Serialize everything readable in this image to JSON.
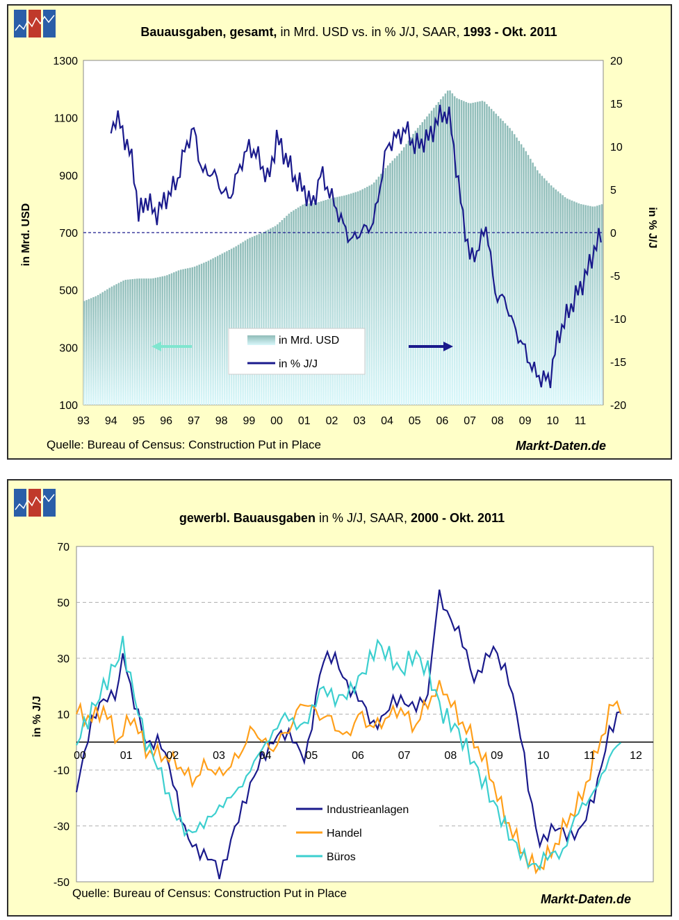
{
  "colors": {
    "panel_bg": "#ffffc8",
    "plot_bg": "#ffffff",
    "bar_fill_top": "#8fbcb8",
    "bar_fill_bottom": "#d8f7fa",
    "yoy_line": "#1a1a8c",
    "industrie": "#1a1a8c",
    "handel": "#ff9f1a",
    "bueros": "#3ccfcf",
    "arrow_left": "#7fe6cf",
    "arrow_right": "#1a1a8c",
    "logo_blue": "#2a5ea8",
    "logo_red": "#c0392b"
  },
  "logo": {
    "icon": "chart-logo-icon"
  },
  "chart1": {
    "title_bold1": "Bauausgaben, gesamt,",
    "title_normal": " in Mrd. USD vs. in % J/J, SAAR, ",
    "title_bold2": "1993 - Okt. 2011",
    "ylabel_left": "in Mrd. USD",
    "ylabel_right": "in % J/J",
    "source": "Quelle: Bureau of Census: Construction Put in Place",
    "brand": "Markt-Daten.de",
    "legend": {
      "bars": "in Mrd. USD",
      "line": "in % J/J"
    }
  },
  "chart2": {
    "title_bold1": "gewerbl. Bauausgaben",
    "title_normal": " in % J/J, SAAR, ",
    "title_bold2": "2000 - Okt. 2011",
    "ylabel": "in % J/J",
    "source": "Quelle: Bureau of Census: Construction Put in Place",
    "brand": "Markt-Daten.de",
    "legend": [
      "Industrieanlagen",
      "Handel",
      "Büros"
    ]
  },
  "chart_data": [
    {
      "type": "bar+line",
      "x_tick_labels": [
        "93",
        "94",
        "95",
        "96",
        "97",
        "98",
        "99",
        "00",
        "01",
        "02",
        "03",
        "04",
        "05",
        "06",
        "07",
        "08",
        "09",
        "10",
        "11"
      ],
      "y_left": {
        "ylim": [
          100,
          1300
        ],
        "ticks": [
          100,
          300,
          500,
          700,
          900,
          1100,
          1300
        ]
      },
      "y_right": {
        "ylim": [
          -20,
          20
        ],
        "ticks": [
          -20,
          -15,
          -10,
          -5,
          0,
          5,
          10,
          15,
          20
        ]
      },
      "zero_line_right": 0,
      "series": [
        {
          "name": "in Mrd. USD",
          "kind": "bar",
          "axis": "left",
          "points": [
            [
              1993.0,
              460
            ],
            [
              1993.5,
              480
            ],
            [
              1994.0,
              510
            ],
            [
              1994.5,
              535
            ],
            [
              1995.0,
              540
            ],
            [
              1995.5,
              540
            ],
            [
              1996.0,
              550
            ],
            [
              1996.5,
              570
            ],
            [
              1997.0,
              580
            ],
            [
              1997.5,
              600
            ],
            [
              1998.0,
              625
            ],
            [
              1998.5,
              650
            ],
            [
              1999.0,
              680
            ],
            [
              1999.5,
              700
            ],
            [
              2000.0,
              725
            ],
            [
              2000.5,
              770
            ],
            [
              2001.0,
              800
            ],
            [
              2001.5,
              805
            ],
            [
              2002.0,
              820
            ],
            [
              2002.5,
              830
            ],
            [
              2003.0,
              845
            ],
            [
              2003.5,
              870
            ],
            [
              2004.0,
              930
            ],
            [
              2004.5,
              980
            ],
            [
              2005.0,
              1050
            ],
            [
              2005.5,
              1110
            ],
            [
              2006.0,
              1170
            ],
            [
              2006.25,
              1200
            ],
            [
              2006.5,
              1170
            ],
            [
              2007.0,
              1150
            ],
            [
              2007.5,
              1160
            ],
            [
              2008.0,
              1110
            ],
            [
              2008.5,
              1060
            ],
            [
              2009.0,
              990
            ],
            [
              2009.5,
              910
            ],
            [
              2010.0,
              860
            ],
            [
              2010.5,
              820
            ],
            [
              2011.0,
              800
            ],
            [
              2011.5,
              790
            ],
            [
              2011.83,
              800
            ]
          ]
        },
        {
          "name": "in % J/J",
          "kind": "line",
          "axis": "right",
          "points": [
            [
              1994.0,
              12
            ],
            [
              1994.2,
              13.5
            ],
            [
              1994.5,
              11
            ],
            [
              1994.8,
              8
            ],
            [
              1995.0,
              2
            ],
            [
              1995.3,
              4
            ],
            [
              1995.6,
              2
            ],
            [
              1996.0,
              4
            ],
            [
              1996.4,
              6
            ],
            [
              1996.7,
              10
            ],
            [
              1997.0,
              12
            ],
            [
              1997.3,
              7
            ],
            [
              1997.7,
              7
            ],
            [
              1998.0,
              5
            ],
            [
              1998.3,
              4
            ],
            [
              1998.7,
              8
            ],
            [
              1999.0,
              10
            ],
            [
              1999.3,
              9
            ],
            [
              1999.7,
              6
            ],
            [
              2000.0,
              11
            ],
            [
              2000.3,
              9
            ],
            [
              2000.7,
              6
            ],
            [
              2001.0,
              5
            ],
            [
              2001.3,
              3
            ],
            [
              2001.6,
              7
            ],
            [
              2002.0,
              4
            ],
            [
              2002.4,
              1
            ],
            [
              2002.7,
              -1
            ],
            [
              2003.0,
              0
            ],
            [
              2003.5,
              1
            ],
            [
              2004.0,
              10
            ],
            [
              2004.3,
              11
            ],
            [
              2004.7,
              12
            ],
            [
              2005.0,
              10
            ],
            [
              2005.5,
              11
            ],
            [
              2006.0,
              14
            ],
            [
              2006.3,
              13
            ],
            [
              2006.6,
              5
            ],
            [
              2007.0,
              -3
            ],
            [
              2007.3,
              -2
            ],
            [
              2007.6,
              1
            ],
            [
              2007.9,
              -7
            ],
            [
              2008.3,
              -8
            ],
            [
              2008.6,
              -11
            ],
            [
              2008.9,
              -13
            ],
            [
              2009.3,
              -16
            ],
            [
              2009.6,
              -17
            ],
            [
              2009.9,
              -17
            ],
            [
              2010.2,
              -12
            ],
            [
              2010.6,
              -9
            ],
            [
              2010.9,
              -7
            ],
            [
              2011.2,
              -5
            ],
            [
              2011.5,
              -2
            ],
            [
              2011.8,
              0
            ]
          ]
        }
      ]
    },
    {
      "type": "line",
      "x_tick_labels": [
        "00",
        "01",
        "02",
        "03",
        "04",
        "05",
        "06",
        "07",
        "08",
        "09",
        "10",
        "11",
        "12"
      ],
      "ylim": [
        -50,
        70
      ],
      "y_ticks": [
        -50,
        -30,
        -10,
        10,
        30,
        50,
        70
      ],
      "zero_line": 0,
      "series": [
        {
          "name": "Industrieanlagen",
          "points": [
            [
              2000.0,
              -15
            ],
            [
              2000.3,
              5
            ],
            [
              2000.6,
              15
            ],
            [
              2000.9,
              20
            ],
            [
              2001.0,
              33
            ],
            [
              2001.2,
              15
            ],
            [
              2001.5,
              0
            ],
            [
              2001.8,
              2
            ],
            [
              2002.0,
              -10
            ],
            [
              2002.3,
              -30
            ],
            [
              2002.7,
              -40
            ],
            [
              2003.0,
              -45
            ],
            [
              2003.1,
              -48
            ],
            [
              2003.4,
              -30
            ],
            [
              2003.7,
              -20
            ],
            [
              2004.0,
              -5
            ],
            [
              2004.3,
              3
            ],
            [
              2004.7,
              0
            ],
            [
              2004.9,
              -5
            ],
            [
              2005.0,
              0
            ],
            [
              2005.3,
              28
            ],
            [
              2005.6,
              30
            ],
            [
              2005.9,
              20
            ],
            [
              2006.1,
              15
            ],
            [
              2006.4,
              5
            ],
            [
              2006.8,
              15
            ],
            [
              2007.2,
              12
            ],
            [
              2007.6,
              18
            ],
            [
              2007.8,
              52
            ],
            [
              2008.0,
              45
            ],
            [
              2008.3,
              40
            ],
            [
              2008.6,
              20
            ],
            [
              2009.0,
              35
            ],
            [
              2009.3,
              25
            ],
            [
              2009.6,
              0
            ],
            [
              2009.8,
              -20
            ],
            [
              2010.0,
              -35
            ],
            [
              2010.3,
              -32
            ],
            [
              2010.6,
              -33
            ],
            [
              2010.9,
              -30
            ],
            [
              2011.2,
              -20
            ],
            [
              2011.5,
              5
            ],
            [
              2011.8,
              14
            ]
          ]
        },
        {
          "name": "Handel",
          "points": [
            [
              2000.0,
              11
            ],
            [
              2000.3,
              8
            ],
            [
              2000.6,
              12
            ],
            [
              2000.9,
              0
            ],
            [
              2001.2,
              10
            ],
            [
              2001.5,
              -3
            ],
            [
              2001.9,
              -5
            ],
            [
              2002.2,
              -8
            ],
            [
              2002.5,
              -14
            ],
            [
              2002.8,
              -8
            ],
            [
              2003.1,
              -12
            ],
            [
              2003.5,
              -5
            ],
            [
              2003.8,
              5
            ],
            [
              2004.2,
              -3
            ],
            [
              2004.6,
              5
            ],
            [
              2004.9,
              15
            ],
            [
              2005.2,
              10
            ],
            [
              2005.5,
              8
            ],
            [
              2005.8,
              1
            ],
            [
              2006.1,
              10
            ],
            [
              2006.4,
              5
            ],
            [
              2006.8,
              10
            ],
            [
              2007.0,
              12
            ],
            [
              2007.3,
              5
            ],
            [
              2007.6,
              15
            ],
            [
              2007.9,
              20
            ],
            [
              2008.2,
              10
            ],
            [
              2008.6,
              0
            ],
            [
              2008.9,
              -10
            ],
            [
              2009.2,
              -25
            ],
            [
              2009.5,
              -35
            ],
            [
              2009.8,
              -44
            ],
            [
              2010.0,
              -45
            ],
            [
              2010.3,
              -38
            ],
            [
              2010.6,
              -28
            ],
            [
              2010.9,
              -20
            ],
            [
              2011.2,
              -5
            ],
            [
              2011.4,
              5
            ],
            [
              2011.6,
              15
            ],
            [
              2011.8,
              12
            ]
          ]
        },
        {
          "name": "Büros",
          "points": [
            [
              2000.0,
              0
            ],
            [
              2000.3,
              10
            ],
            [
              2000.6,
              20
            ],
            [
              2000.9,
              30
            ],
            [
              2001.0,
              35
            ],
            [
              2001.2,
              20
            ],
            [
              2001.5,
              0
            ],
            [
              2001.8,
              -10
            ],
            [
              2002.1,
              -25
            ],
            [
              2002.4,
              -33
            ],
            [
              2002.7,
              -30
            ],
            [
              2003.0,
              -25
            ],
            [
              2003.3,
              -20
            ],
            [
              2003.6,
              -15
            ],
            [
              2003.9,
              -5
            ],
            [
              2004.2,
              2
            ],
            [
              2004.5,
              10
            ],
            [
              2004.8,
              5
            ],
            [
              2005.0,
              8
            ],
            [
              2005.3,
              20
            ],
            [
              2005.6,
              15
            ],
            [
              2005.9,
              18
            ],
            [
              2006.2,
              25
            ],
            [
              2006.5,
              35
            ],
            [
              2006.8,
              30
            ],
            [
              2007.0,
              25
            ],
            [
              2007.3,
              32
            ],
            [
              2007.6,
              25
            ],
            [
              2007.9,
              10
            ],
            [
              2008.2,
              5
            ],
            [
              2008.5,
              -5
            ],
            [
              2008.8,
              -15
            ],
            [
              2009.1,
              -25
            ],
            [
              2009.4,
              -35
            ],
            [
              2009.7,
              -42
            ],
            [
              2009.9,
              -45
            ],
            [
              2010.2,
              -40
            ],
            [
              2010.5,
              -40
            ],
            [
              2010.8,
              -25
            ],
            [
              2011.1,
              -20
            ],
            [
              2011.4,
              -10
            ],
            [
              2011.6,
              -2
            ],
            [
              2011.8,
              0
            ]
          ]
        }
      ]
    }
  ]
}
